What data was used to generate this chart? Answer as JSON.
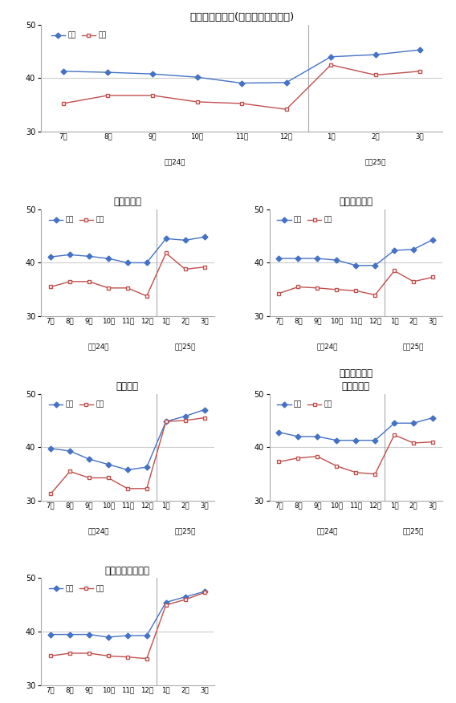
{
  "visit_color": "#4472C4",
  "trial_color": "#C0504D",
  "visit_label": "訪問",
  "trial_label": "試験",
  "ylim": [
    30,
    50
  ],
  "yticks": [
    30,
    40,
    50
  ],
  "x_labels": [
    "7月",
    "8月",
    "9月",
    "10月",
    "11月",
    "12月",
    "1月",
    "2月",
    "3月"
  ],
  "year_label_left": "平成24年",
  "year_label_right": "平成25年",
  "charts": [
    {
      "title": "消費者態度指数(単身世帯、原数値)",
      "full_width": true,
      "visit": [
        41.3,
        41.1,
        40.8,
        40.2,
        39.1,
        39.2,
        44.0,
        44.4,
        45.3
      ],
      "trial": [
        35.3,
        36.8,
        36.8,
        35.6,
        35.3,
        34.2,
        42.5,
        40.6,
        41.3
      ]
    },
    {
      "title": "暮らし向き",
      "full_width": false,
      "visit": [
        41.1,
        41.5,
        41.2,
        40.8,
        40.0,
        40.0,
        44.5,
        44.2,
        44.8
      ],
      "trial": [
        35.5,
        36.5,
        36.5,
        35.3,
        35.3,
        33.8,
        41.8,
        38.8,
        39.2
      ]
    },
    {
      "title": "收入の増え方",
      "full_width": false,
      "visit": [
        40.8,
        40.8,
        40.8,
        40.5,
        39.5,
        39.5,
        42.3,
        42.5,
        44.3
      ],
      "trial": [
        34.3,
        35.5,
        35.3,
        35.0,
        34.8,
        34.0,
        38.5,
        36.5,
        37.3
      ]
    },
    {
      "title": "雇用環境",
      "full_width": false,
      "visit": [
        39.8,
        39.3,
        37.8,
        36.8,
        35.8,
        36.3,
        44.8,
        45.8,
        47.0
      ],
      "trial": [
        31.3,
        35.5,
        34.3,
        34.3,
        32.3,
        32.3,
        44.8,
        45.0,
        45.5
      ]
    },
    {
      "title": "耕久消費財の\n買い時判断",
      "full_width": false,
      "visit": [
        42.8,
        42.0,
        42.0,
        41.3,
        41.3,
        41.3,
        44.5,
        44.5,
        45.5
      ],
      "trial": [
        37.3,
        38.0,
        38.3,
        36.5,
        35.3,
        35.0,
        42.3,
        40.8,
        41.0
      ]
    },
    {
      "title": "資産価値の増え方",
      "full_width": false,
      "visit": [
        39.5,
        39.5,
        39.5,
        39.0,
        39.3,
        39.3,
        45.5,
        46.5,
        47.5
      ],
      "trial": [
        35.5,
        36.0,
        36.0,
        35.5,
        35.3,
        35.0,
        45.0,
        46.0,
        47.3
      ]
    }
  ]
}
